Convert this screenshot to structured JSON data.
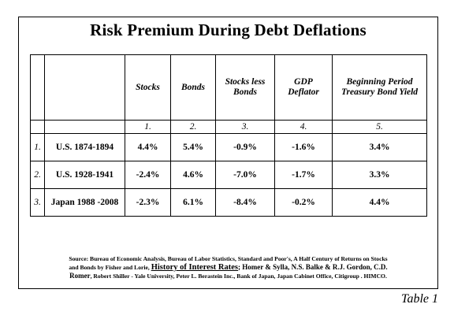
{
  "title": "Risk Premium During Debt Deflations",
  "headers": {
    "stocks": "Stocks",
    "bonds": "Bonds",
    "stocks_less_bonds": "Stocks less Bonds",
    "gdp_deflator": "GDP Deflator",
    "beginning_yield": "Beginning Period Treasury Bond Yield"
  },
  "column_numbers": [
    "1.",
    "2.",
    "3.",
    "4.",
    "5."
  ],
  "rows": [
    {
      "index": "1.",
      "period": "U.S. 1874-1894",
      "stocks": "4.4%",
      "bonds": "5.4%",
      "stocks_less_bonds": "-0.9%",
      "gdp_deflator": "-1.6%",
      "beginning_yield": "3.4%"
    },
    {
      "index": "2.",
      "period": "U.S. 1928-1941",
      "stocks": "-2.4%",
      "bonds": "4.6%",
      "stocks_less_bonds": "-7.0%",
      "gdp_deflator": "-1.7%",
      "beginning_yield": "3.3%"
    },
    {
      "index": "3.",
      "period": "Japan 1988 -2008",
      "stocks": "-2.3%",
      "bonds": "6.1%",
      "stocks_less_bonds": "-8.4%",
      "gdp_deflator": "-0.2%",
      "beginning_yield": "4.4%"
    }
  ],
  "source": {
    "line1": "Source: Bureau of Economic Analysis, Bureau of Labor Statistics, Standard and Poor's, A Half Century of Returns  on Stocks",
    "line2_pre": "and Bonds by  Fisher and Lorie, ",
    "line2_book": "History of Interest Rates",
    "line2_post": "; Homer & Sylla, N.S. Balke & R.J. Gordon, C.D.",
    "line3_name": "Romer",
    "line3_rest": ", Robert Shiller - Yale University, Peter L. Berastein Inc., Bank of Japan, Japan Cabinet Office, Citigroup .  HIMCO."
  },
  "table_label": "Table 1"
}
